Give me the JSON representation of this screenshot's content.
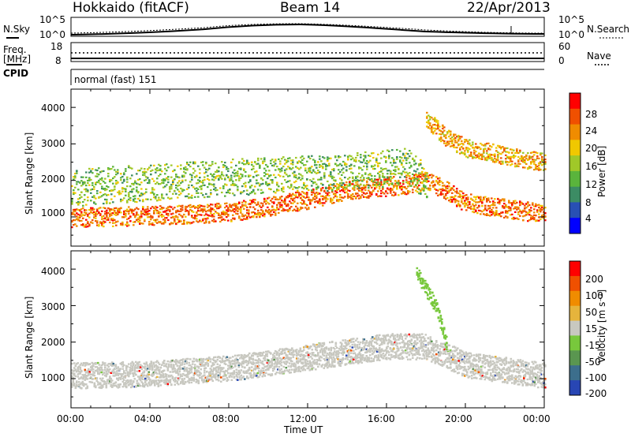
{
  "header": {
    "title": "Hokkaido (fitACF)",
    "beam": "Beam 14",
    "date": "22/Apr/2013"
  },
  "aux": {
    "nsky_label": "N.Sky",
    "nsearch_label": "N.Search",
    "freq_label": "Freq.",
    "freq_unit": "[MHz]",
    "nave_label": "Nave",
    "cpid_label": "CPID",
    "cpid_value": "normal (fast) 151",
    "noise_ticks": [
      "10^5",
      "10^0"
    ],
    "noise_ticks_right": [
      "10^5",
      "10^0"
    ],
    "freq_ticks": [
      "18",
      "8"
    ],
    "nave_ticks": [
      "60",
      "0"
    ]
  },
  "chart_data": [
    {
      "type": "heatmap",
      "panel": "power",
      "ylabel": "Slant Range [km]",
      "xlabel": "",
      "xlim": [
        0,
        24
      ],
      "ylim": [
        200,
        4500
      ],
      "yticks": [
        "1000",
        "2000",
        "3000",
        "4000"
      ],
      "colorbar_label": "Power [dB]",
      "colorbar_ticks": [
        "28",
        "24",
        "20",
        "16",
        "12",
        "8",
        "4"
      ],
      "colorbar_colors": [
        "#0000ff",
        "#2850b4",
        "#3c8c64",
        "#5ab43c",
        "#a0c828",
        "#f0c800",
        "#f08c00",
        "#f05000",
        "#ff0000"
      ],
      "features": [
        {
          "name": "main band",
          "t": [
            0,
            4,
            8,
            10,
            12,
            14,
            16,
            17,
            18,
            19,
            20,
            24
          ],
          "r": [
            1000,
            1050,
            1150,
            1300,
            1500,
            1750,
            1850,
            1900,
            2000,
            1750,
            1400,
            1100
          ],
          "level_db": 26
        },
        {
          "name": "upper band",
          "t": [
            0,
            2,
            4,
            8,
            12,
            15,
            17,
            18
          ],
          "r": [
            1800,
            1900,
            1950,
            2100,
            2200,
            2300,
            2400,
            2000
          ],
          "level_db": 14
        },
        {
          "name": "far echoes",
          "t": [
            18,
            19,
            20,
            22,
            24
          ],
          "r": [
            3700,
            3200,
            2900,
            2700,
            2500
          ],
          "level_db": 22
        }
      ]
    },
    {
      "type": "heatmap",
      "panel": "velocity",
      "ylabel": "Slant Range [km]",
      "xlabel": "Time UT",
      "xlim": [
        0,
        24
      ],
      "ylim": [
        200,
        4500
      ],
      "xticks": [
        "00:00",
        "04:00",
        "08:00",
        "12:00",
        "16:00",
        "20:00",
        "00:00"
      ],
      "yticks": [
        "1000",
        "2000",
        "3000",
        "4000"
      ],
      "colorbar_label": "Velocity [m s⁻¹]",
      "colorbar_ticks": [
        "200",
        "100",
        "50",
        "15",
        "-15",
        "-50",
        "-100",
        "-200"
      ],
      "colorbar_colors": [
        "#2846b4",
        "#3c6e8c",
        "#5a9650",
        "#78c83c",
        "#c8c8c0",
        "#e6b43c",
        "#f08c00",
        "#f05000",
        "#ff0000"
      ],
      "features": [
        {
          "name": "ground scatter band",
          "t": [
            0,
            4,
            8,
            12,
            16,
            18,
            20,
            24
          ],
          "r": [
            1100,
            1150,
            1300,
            1600,
            1900,
            1900,
            1400,
            1100
          ],
          "velocity": 0
        },
        {
          "name": "green cluster",
          "t": [
            17.5,
            18.5,
            19
          ],
          "r": [
            3900,
            3000,
            2000
          ],
          "velocity": 40
        }
      ]
    }
  ]
}
